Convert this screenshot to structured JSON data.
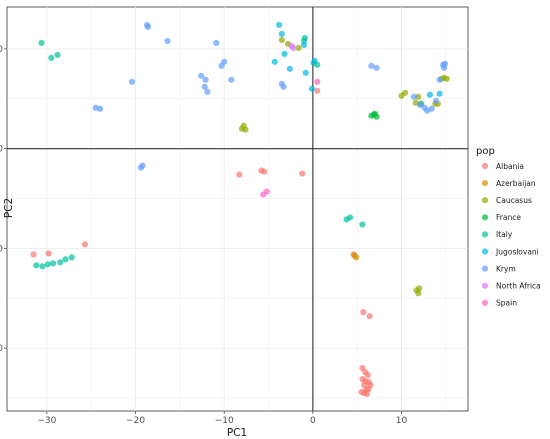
{
  "chart_data": {
    "type": "scatter",
    "xlabel": "PC1",
    "ylabel": "PC2",
    "xlim": [
      -34.5,
      17.5
    ],
    "ylim": [
      -26.3,
      14.2
    ],
    "xticks": [
      -30,
      -20,
      -10,
      0,
      10
    ],
    "yticks": [
      10,
      0,
      -10,
      -20
    ],
    "xtick_labels": [
      "−30",
      "−20",
      "−10",
      "0",
      "10"
    ],
    "ytick_labels": [
      "10",
      "0",
      "−10",
      "−20"
    ],
    "reference_lines": {
      "x": 0,
      "y": 0
    },
    "grid": true,
    "legend_title": "pop",
    "legend_position": "right",
    "series": [
      {
        "name": "Albania",
        "color": "#F8766D",
        "points": [
          [
            -31.5,
            -10.6
          ],
          [
            -29.8,
            -10.5
          ],
          [
            -25.7,
            -9.6
          ],
          [
            -8.3,
            -2.6
          ],
          [
            -5.8,
            -2.2
          ],
          [
            -5.5,
            -2.3
          ],
          [
            -1.2,
            -2.5
          ],
          [
            0.5,
            5.8
          ],
          [
            4.6,
            -10.6
          ],
          [
            5.7,
            -16.4
          ],
          [
            6.4,
            -16.8
          ],
          [
            5.6,
            -22.0
          ],
          [
            5.9,
            -22.4
          ],
          [
            6.2,
            -22.7
          ],
          [
            5.6,
            -23.1
          ],
          [
            5.9,
            -23.3
          ],
          [
            6.3,
            -23.4
          ],
          [
            6.5,
            -23.7
          ],
          [
            5.8,
            -23.7
          ],
          [
            6.0,
            -24.2
          ],
          [
            5.5,
            -24.4
          ],
          [
            5.8,
            -24.5
          ],
          [
            6.1,
            -24.6
          ],
          [
            6.3,
            -24.1
          ]
        ]
      },
      {
        "name": "Azerbaijan",
        "color": "#D39200",
        "points": [
          [
            4.7,
            -10.7
          ],
          [
            4.9,
            -10.9
          ]
        ]
      },
      {
        "name": "Caucasus",
        "color": "#93AA00",
        "points": [
          [
            -8.0,
            2.0
          ],
          [
            -7.8,
            2.3
          ],
          [
            -7.6,
            1.9
          ],
          [
            -3.5,
            10.9
          ],
          [
            -2.8,
            10.5
          ],
          [
            -1.6,
            10.1
          ],
          [
            10.0,
            5.3
          ],
          [
            10.4,
            5.6
          ],
          [
            11.6,
            4.6
          ],
          [
            11.9,
            5.2
          ],
          [
            13.8,
            4.5
          ],
          [
            14.1,
            4.5
          ],
          [
            14.5,
            7.0
          ],
          [
            14.8,
            7.1
          ],
          [
            15.1,
            7.0
          ],
          [
            11.7,
            -14.2
          ],
          [
            11.9,
            -14.5
          ],
          [
            12.0,
            -14.0
          ]
        ]
      },
      {
        "name": "France",
        "color": "#00BA38",
        "points": [
          [
            6.6,
            3.3
          ],
          [
            6.9,
            3.4
          ],
          [
            7.2,
            3.2
          ],
          [
            7.0,
            3.5
          ],
          [
            12.2,
            4.5
          ]
        ]
      },
      {
        "name": "Italy",
        "color": "#00C19F",
        "points": [
          [
            -30.6,
            10.6
          ],
          [
            -29.5,
            9.1
          ],
          [
            -28.8,
            9.4
          ],
          [
            -31.2,
            -11.7
          ],
          [
            -30.5,
            -11.8
          ],
          [
            -29.9,
            -11.6
          ],
          [
            -29.3,
            -11.5
          ],
          [
            -28.5,
            -11.4
          ],
          [
            -27.9,
            -11.1
          ],
          [
            -27.2,
            -10.9
          ],
          [
            3.8,
            -7.1
          ],
          [
            4.2,
            -6.9
          ],
          [
            5.6,
            -7.6
          ],
          [
            -1.0,
            10.8
          ],
          [
            -0.9,
            11.1
          ],
          [
            0.1,
            8.6
          ],
          [
            0.5,
            8.4
          ]
        ]
      },
      {
        "name": "Jugoslovani",
        "color": "#00B9E3",
        "points": [
          [
            -3.8,
            12.4
          ],
          [
            -3.5,
            11.5
          ],
          [
            -4.3,
            8.7
          ],
          [
            -3.2,
            9.5
          ],
          [
            -2.6,
            8.0
          ],
          [
            -1.0,
            10.4
          ],
          [
            -0.8,
            7.6
          ],
          [
            -0.1,
            6.0
          ],
          [
            0.2,
            8.8
          ],
          [
            13.2,
            5.4
          ],
          [
            14.3,
            5.5
          ]
        ]
      },
      {
        "name": "Krym",
        "color": "#619CFF",
        "points": [
          [
            -24.5,
            4.1
          ],
          [
            -24.0,
            4.0
          ],
          [
            -20.4,
            6.7
          ],
          [
            -18.7,
            12.4
          ],
          [
            -18.6,
            12.2
          ],
          [
            -16.4,
            10.8
          ],
          [
            -19.4,
            -1.9
          ],
          [
            -19.2,
            -1.7
          ],
          [
            -12.6,
            7.3
          ],
          [
            -12.1,
            6.9
          ],
          [
            -11.9,
            5.7
          ],
          [
            -12.2,
            6.2
          ],
          [
            -10.9,
            10.6
          ],
          [
            -10.3,
            8.3
          ],
          [
            -10.0,
            8.7
          ],
          [
            -9.2,
            6.9
          ],
          [
            -3.5,
            6.5
          ],
          [
            -3.3,
            6.2
          ],
          [
            6.6,
            8.3
          ],
          [
            7.2,
            8.1
          ],
          [
            11.4,
            5.2
          ],
          [
            12.1,
            4.4
          ],
          [
            12.6,
            4.1
          ],
          [
            12.9,
            3.8
          ],
          [
            13.4,
            4.0
          ],
          [
            13.9,
            4.8
          ],
          [
            14.3,
            6.9
          ],
          [
            14.7,
            8.4
          ],
          [
            14.9,
            8.5
          ],
          [
            14.8,
            8.1
          ]
        ]
      },
      {
        "name": "North Africa",
        "color": "#DB72FB",
        "points": [
          [
            -2.4,
            10.3
          ],
          [
            -2.2,
            10.1
          ]
        ]
      },
      {
        "name": "Spain",
        "color": "#FF61C3",
        "points": [
          [
            -5.6,
            -4.6
          ],
          [
            -5.2,
            -4.3
          ],
          [
            0.5,
            6.7
          ]
        ]
      }
    ]
  }
}
